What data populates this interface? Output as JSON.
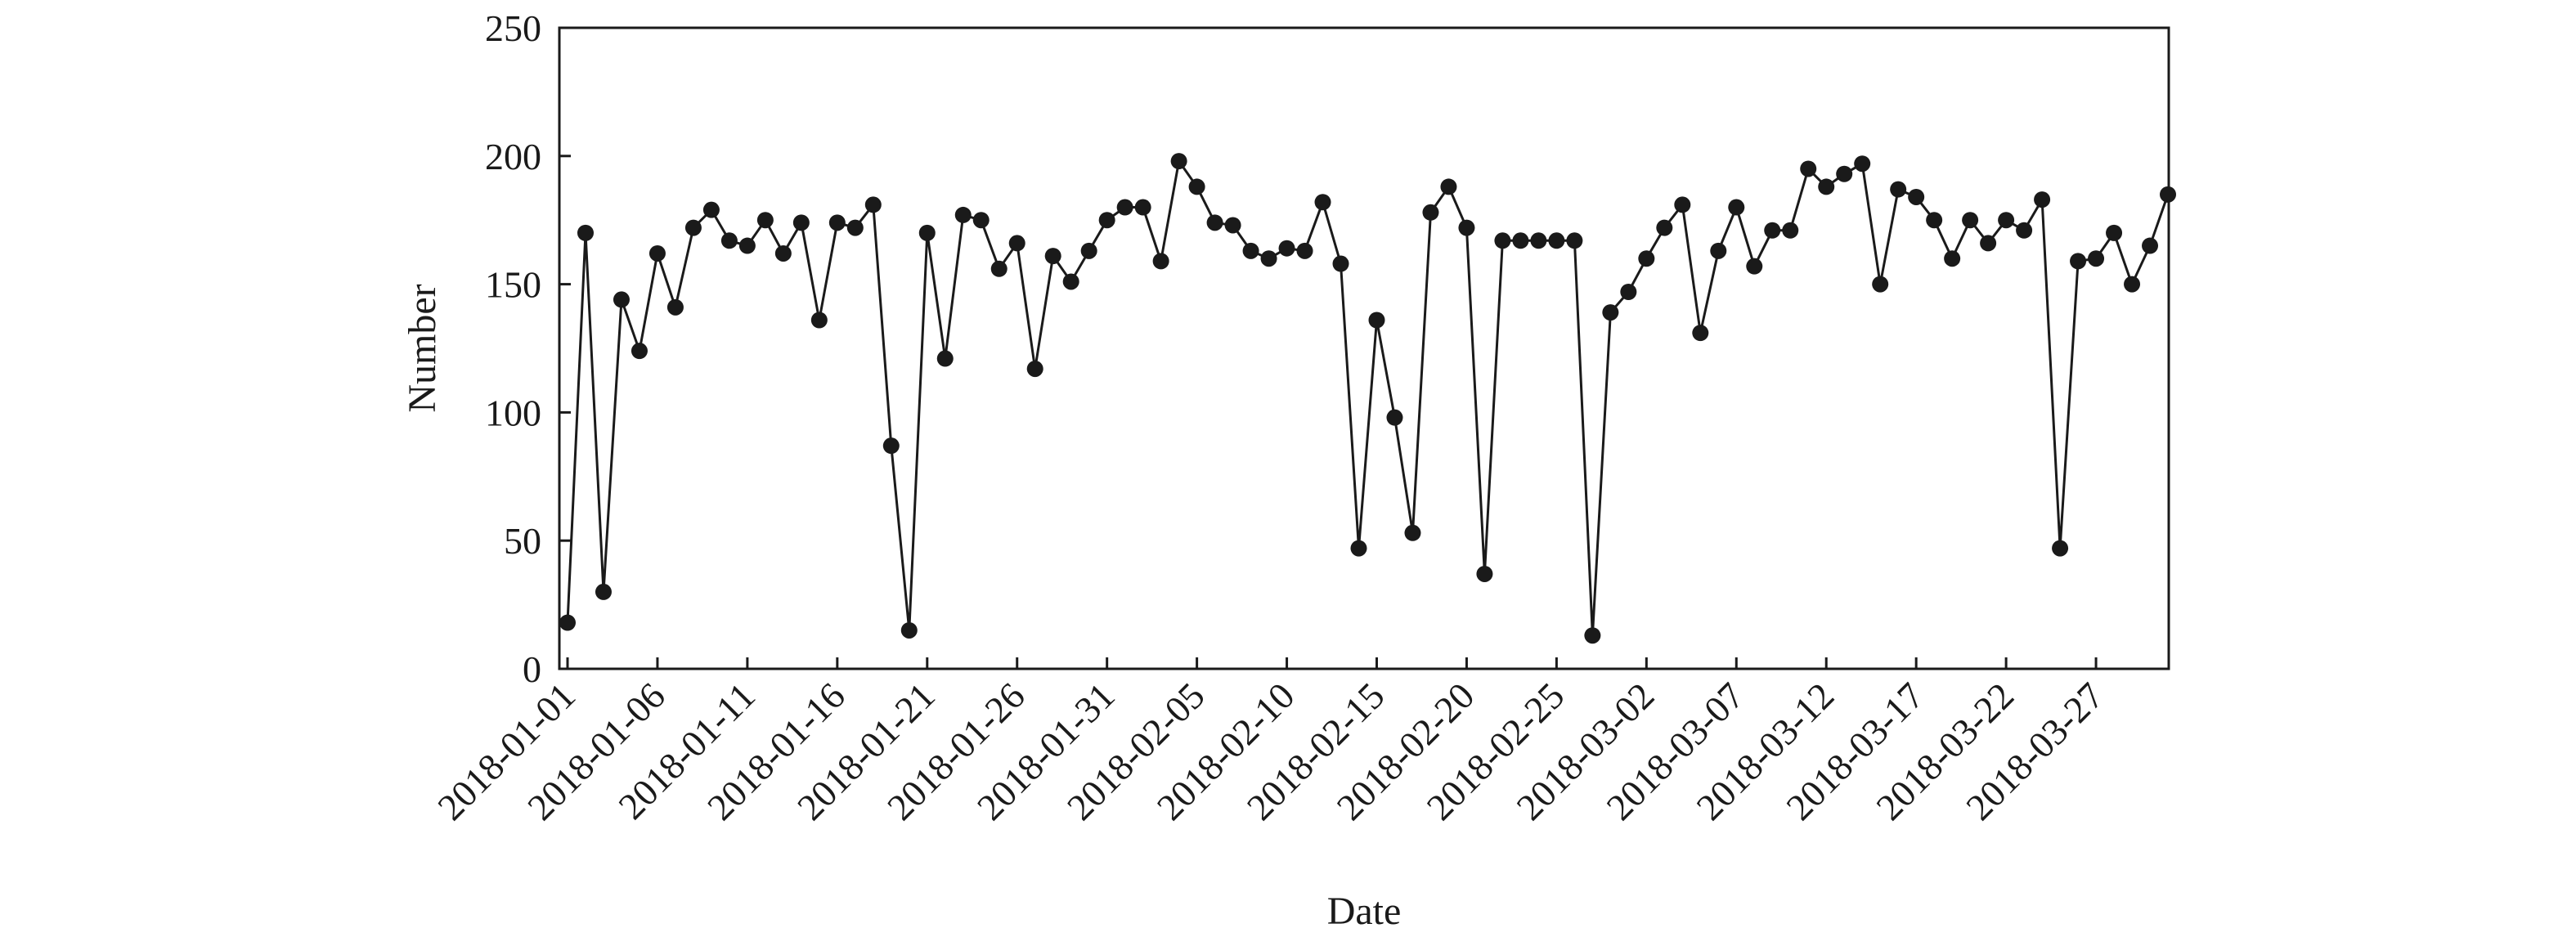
{
  "chart_data": {
    "type": "line",
    "title": "",
    "xlabel": "Date",
    "ylabel": "Number",
    "ylim": [
      0,
      250
    ],
    "y_ticks": [
      0,
      50,
      100,
      150,
      200,
      250
    ],
    "x_start": "2018-01-01",
    "x_end": "2018-03-31",
    "x_tick_labels": [
      "2018-01-01",
      "2018-01-06",
      "2018-01-11",
      "2018-01-16",
      "2018-01-21",
      "2018-01-26",
      "2018-01-31",
      "2018-02-05",
      "2018-02-10",
      "2018-02-15",
      "2018-02-20",
      "2018-02-25",
      "2018-03-02",
      "2018-03-07",
      "2018-03-12",
      "2018-03-17",
      "2018-03-22",
      "2018-03-27"
    ],
    "grid": false,
    "legend": "none",
    "marker": "filled-circle",
    "color": "#1a1a1a",
    "series": [
      {
        "values": [
          18,
          170,
          30,
          144,
          124,
          162,
          141,
          172,
          179,
          167,
          165,
          175,
          162,
          174,
          136,
          174,
          172,
          181,
          87,
          15,
          170,
          121,
          177,
          175,
          156,
          166,
          117,
          161,
          151,
          163,
          175,
          180,
          180,
          159,
          198,
          188,
          174,
          173,
          163,
          160,
          164,
          163,
          182,
          158,
          47,
          136,
          98,
          53,
          178,
          188,
          172,
          37,
          167,
          167,
          167,
          167,
          167,
          13,
          139,
          147,
          160,
          172,
          181,
          131,
          163,
          180,
          157,
          171,
          171,
          195,
          188,
          193,
          197,
          150,
          187,
          184,
          175,
          160,
          175,
          166,
          175,
          171,
          183,
          47,
          159,
          160,
          170,
          150,
          165,
          185
        ]
      }
    ]
  }
}
